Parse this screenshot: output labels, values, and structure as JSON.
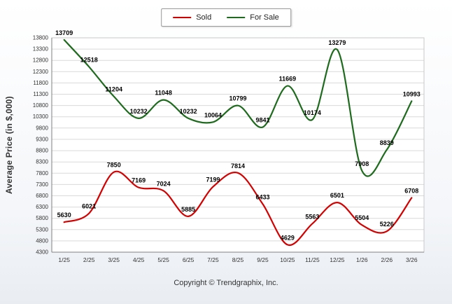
{
  "chart_data": {
    "type": "line",
    "categories": [
      "1/25",
      "2/25",
      "3/25",
      "4/25",
      "5/25",
      "6/25",
      "7/25",
      "8/25",
      "9/25",
      "10/25",
      "11/25",
      "12/25",
      "1/26",
      "2/26",
      "3/26"
    ],
    "series": [
      {
        "name": "Sold",
        "color": "#d40000",
        "values": [
          5630,
          6021,
          7850,
          7169,
          7024,
          5885,
          7199,
          7814,
          6433,
          4629,
          5563,
          6501,
          5504,
          5226,
          6708
        ]
      },
      {
        "name": "For Sale",
        "color": "#1e6b1e",
        "values": [
          13709,
          12518,
          11204,
          10232,
          11048,
          10232,
          10064,
          10799,
          9841,
          11669,
          10174,
          13279,
          7908,
          8839,
          10993
        ]
      }
    ],
    "title": "",
    "xlabel": "",
    "ylabel": "Average Price (in $,000)",
    "ylim": [
      4300,
      13800
    ],
    "ytick_step": 500,
    "grid": true,
    "grid_color": "#d9d9d9",
    "axis_color": "#808080",
    "legend_position": "top-center",
    "copyright": "Copyright © Trendgraphix, Inc."
  }
}
